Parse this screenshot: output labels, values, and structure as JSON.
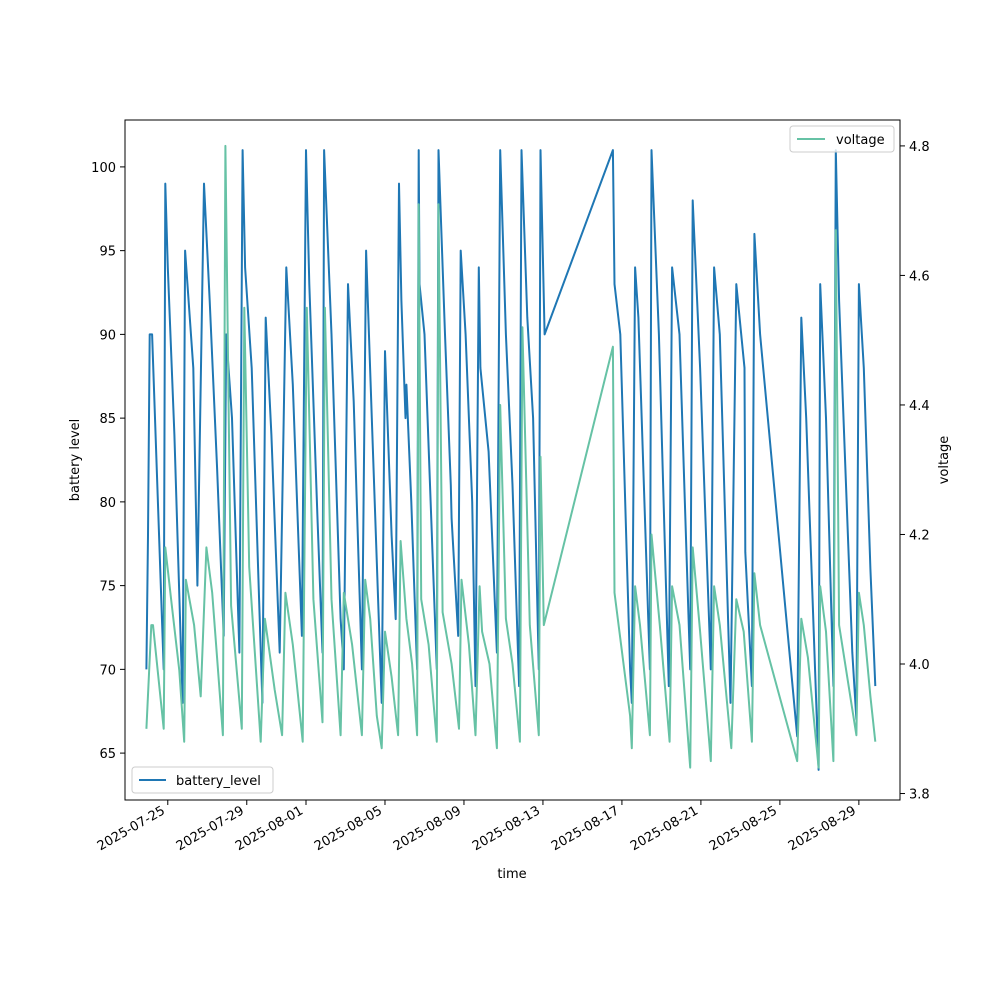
{
  "chart_data": {
    "type": "line",
    "title": "",
    "xlabel": "time",
    "ylabel_left": "battery level",
    "ylabel_right": "voltage",
    "x_ticks": [
      "2025-07-25",
      "2025-07-29",
      "2025-08-01",
      "2025-08-05",
      "2025-08-09",
      "2025-08-13",
      "2025-08-17",
      "2025-08-21",
      "2025-08-25",
      "2025-08-29"
    ],
    "xlim": [
      "2025-07-22T20:00",
      "2025-08-31T02:00"
    ],
    "yticks_left": [
      65,
      70,
      75,
      80,
      85,
      90,
      95,
      100
    ],
    "ylim_left": [
      62.2,
      102.8
    ],
    "yticks_right": [
      3.8,
      4.0,
      4.2,
      4.4,
      4.6,
      4.8
    ],
    "ylim_right": [
      3.79,
      4.84
    ],
    "grid": false,
    "legends": [
      {
        "label": "battery_level",
        "placement": "lower-left"
      },
      {
        "label": "voltage",
        "placement": "upper-right"
      }
    ],
    "series": [
      {
        "name": "battery_level",
        "axis": "left",
        "color": "#1f77b4",
        "points": [
          [
            "2025-07-23T22:00",
            70
          ],
          [
            "2025-07-24T00:00",
            78
          ],
          [
            "2025-07-24T02:00",
            90
          ],
          [
            "2025-07-24T05:00",
            90
          ],
          [
            "2025-07-24T19:00",
            70
          ],
          [
            "2025-07-24T21:00",
            99
          ],
          [
            "2025-07-25T00:00",
            94
          ],
          [
            "2025-07-25T08:00",
            84
          ],
          [
            "2025-07-25T18:00",
            68
          ],
          [
            "2025-07-25T21:00",
            95
          ],
          [
            "2025-07-26T07:00",
            88
          ],
          [
            "2025-07-26T12:00",
            75
          ],
          [
            "2025-07-26T20:00",
            99
          ],
          [
            "2025-07-27T03:00",
            92
          ],
          [
            "2025-07-27T12:00",
            82
          ],
          [
            "2025-07-27T20:00",
            72
          ],
          [
            "2025-07-27T23:00",
            90
          ],
          [
            "2025-07-28T06:00",
            85
          ],
          [
            "2025-07-28T15:00",
            71
          ],
          [
            "2025-07-28T19:00",
            101
          ],
          [
            "2025-07-28T22:00",
            94
          ],
          [
            "2025-07-29T06:00",
            88
          ],
          [
            "2025-07-29T19:00",
            68
          ],
          [
            "2025-07-29T23:00",
            91
          ],
          [
            "2025-07-30T06:00",
            84
          ],
          [
            "2025-07-30T16:00",
            71
          ],
          [
            "2025-07-31T00:00",
            94
          ],
          [
            "2025-07-31T08:00",
            87
          ],
          [
            "2025-07-31T19:00",
            72
          ],
          [
            "2025-08-01T00:00",
            101
          ],
          [
            "2025-08-01T04:00",
            93
          ],
          [
            "2025-08-01T14:00",
            79
          ],
          [
            "2025-08-01T20:00",
            71
          ],
          [
            "2025-08-01T22:00",
            101
          ],
          [
            "2025-08-02T07:00",
            90
          ],
          [
            "2025-08-02T18:00",
            73
          ],
          [
            "2025-08-02T22:00",
            70
          ],
          [
            "2025-08-03T03:00",
            93
          ],
          [
            "2025-08-03T10:00",
            86
          ],
          [
            "2025-08-03T20:00",
            70
          ],
          [
            "2025-08-04T01:00",
            95
          ],
          [
            "2025-08-04T08:00",
            85
          ],
          [
            "2025-08-04T20:00",
            68
          ],
          [
            "2025-08-05T00:00",
            89
          ],
          [
            "2025-08-05T08:00",
            78
          ],
          [
            "2025-08-05T13:00",
            73
          ],
          [
            "2025-08-05T17:00",
            99
          ],
          [
            "2025-08-05T20:00",
            92
          ],
          [
            "2025-08-06T01:00",
            85
          ],
          [
            "2025-08-06T02:00",
            87
          ],
          [
            "2025-08-06T08:00",
            80
          ],
          [
            "2025-08-06T15:00",
            70
          ],
          [
            "2025-08-06T17:00",
            101
          ],
          [
            "2025-08-06T18:00",
            93
          ],
          [
            "2025-08-07T00:00",
            90
          ],
          [
            "2025-08-07T06:00",
            82
          ],
          [
            "2025-08-07T15:00",
            70
          ],
          [
            "2025-08-07T17:00",
            101
          ],
          [
            "2025-08-08T01:00",
            90
          ],
          [
            "2025-08-08T08:00",
            81
          ],
          [
            "2025-08-08T09:00",
            79
          ],
          [
            "2025-08-08T17:00",
            72
          ],
          [
            "2025-08-08T20:00",
            95
          ],
          [
            "2025-08-09T02:00",
            90
          ],
          [
            "2025-08-09T10:00",
            80
          ],
          [
            "2025-08-09T14:00",
            69
          ],
          [
            "2025-08-09T18:00",
            94
          ],
          [
            "2025-08-09T20:00",
            88
          ],
          [
            "2025-08-10T06:00",
            83
          ],
          [
            "2025-08-10T16:00",
            71
          ],
          [
            "2025-08-10T20:00",
            101
          ],
          [
            "2025-08-11T03:00",
            90
          ],
          [
            "2025-08-11T11:00",
            81
          ],
          [
            "2025-08-11T19:00",
            69
          ],
          [
            "2025-08-11T22:00",
            101
          ],
          [
            "2025-08-12T05:00",
            91
          ],
          [
            "2025-08-12T12:00",
            85
          ],
          [
            "2025-08-12T19:00",
            70
          ],
          [
            "2025-08-12T21:00",
            101
          ],
          [
            "2025-08-13T02:00",
            90
          ],
          [
            "2025-08-16T13:00",
            101
          ],
          [
            "2025-08-16T15:00",
            93
          ],
          [
            "2025-08-16T22:00",
            90
          ],
          [
            "2025-08-17T10:00",
            70
          ],
          [
            "2025-08-17T12:00",
            68
          ],
          [
            "2025-08-17T16:00",
            94
          ],
          [
            "2025-08-17T20:00",
            91
          ],
          [
            "2025-08-18T10:00",
            70
          ],
          [
            "2025-08-18T12:00",
            101
          ],
          [
            "2025-08-18T21:00",
            90
          ],
          [
            "2025-08-19T09:00",
            69
          ],
          [
            "2025-08-19T13:00",
            94
          ],
          [
            "2025-08-19T22:00",
            90
          ],
          [
            "2025-08-20T11:00",
            70
          ],
          [
            "2025-08-20T14:00",
            98
          ],
          [
            "2025-08-20T23:00",
            88
          ],
          [
            "2025-08-21T12:00",
            70
          ],
          [
            "2025-08-21T16:00",
            94
          ],
          [
            "2025-08-21T23:00",
            90
          ],
          [
            "2025-08-22T12:00",
            68
          ],
          [
            "2025-08-22T19:00",
            93
          ],
          [
            "2025-08-23T05:00",
            88
          ],
          [
            "2025-08-23T06:00",
            77
          ],
          [
            "2025-08-23T14:00",
            69
          ],
          [
            "2025-08-23T17:00",
            96
          ],
          [
            "2025-08-24T00:00",
            90
          ],
          [
            "2025-08-25T21:00",
            66
          ],
          [
            "2025-08-26T02:00",
            91
          ],
          [
            "2025-08-26T08:00",
            85
          ],
          [
            "2025-08-26T23:00",
            64
          ],
          [
            "2025-08-27T01:00",
            93
          ],
          [
            "2025-08-27T08:00",
            85
          ],
          [
            "2025-08-27T17:00",
            69
          ],
          [
            "2025-08-27T20:00",
            101
          ],
          [
            "2025-08-28T00:00",
            92
          ],
          [
            "2025-08-28T16:00",
            71
          ],
          [
            "2025-08-28T21:00",
            67
          ],
          [
            "2025-08-29T00:00",
            93
          ],
          [
            "2025-08-29T06:00",
            88
          ],
          [
            "2025-08-29T14:00",
            76
          ],
          [
            "2025-08-29T20:00",
            69
          ]
        ]
      },
      {
        "name": "voltage",
        "axis": "right",
        "color": "#66c2a5",
        "points": [
          [
            "2025-07-23T22:00",
            3.9
          ],
          [
            "2025-07-24T04:00",
            4.06
          ],
          [
            "2025-07-24T06:00",
            4.06
          ],
          [
            "2025-07-24T19:00",
            3.9
          ],
          [
            "2025-07-24T21:00",
            4.18
          ],
          [
            "2025-07-25T04:00",
            4.1
          ],
          [
            "2025-07-25T14:00",
            3.99
          ],
          [
            "2025-07-25T20:00",
            3.88
          ],
          [
            "2025-07-25T22:00",
            4.13
          ],
          [
            "2025-07-26T08:00",
            4.06
          ],
          [
            "2025-07-26T16:00",
            3.95
          ],
          [
            "2025-07-26T23:00",
            4.18
          ],
          [
            "2025-07-27T06:00",
            4.11
          ],
          [
            "2025-07-27T19:00",
            3.89
          ],
          [
            "2025-07-27T22:00",
            4.8
          ],
          [
            "2025-07-28T05:00",
            4.09
          ],
          [
            "2025-07-28T18:00",
            3.9
          ],
          [
            "2025-07-28T21:00",
            4.55
          ],
          [
            "2025-07-29T03:00",
            4.15
          ],
          [
            "2025-07-29T17:00",
            3.88
          ],
          [
            "2025-07-29T22:00",
            4.07
          ],
          [
            "2025-07-30T10:00",
            3.96
          ],
          [
            "2025-07-30T19:00",
            3.89
          ],
          [
            "2025-07-30T23:00",
            4.11
          ],
          [
            "2025-07-31T08:00",
            4.03
          ],
          [
            "2025-07-31T20:00",
            3.88
          ],
          [
            "2025-08-01T01:00",
            4.55
          ],
          [
            "2025-08-01T09:00",
            4.1
          ],
          [
            "2025-08-01T20:00",
            3.91
          ],
          [
            "2025-08-01T23:00",
            4.55
          ],
          [
            "2025-08-02T07:00",
            4.1
          ],
          [
            "2025-08-02T18:00",
            3.89
          ],
          [
            "2025-08-02T22:00",
            4.11
          ],
          [
            "2025-08-03T08:00",
            4.03
          ],
          [
            "2025-08-03T20:00",
            3.89
          ],
          [
            "2025-08-04T00:00",
            4.13
          ],
          [
            "2025-08-04T06:00",
            4.07
          ],
          [
            "2025-08-04T14:00",
            3.92
          ],
          [
            "2025-08-04T20:00",
            3.87
          ],
          [
            "2025-08-05T00:00",
            4.05
          ],
          [
            "2025-08-05T08:00",
            3.98
          ],
          [
            "2025-08-05T16:00",
            3.89
          ],
          [
            "2025-08-05T19:00",
            4.19
          ],
          [
            "2025-08-06T02:00",
            4.07
          ],
          [
            "2025-08-06T09:00",
            4.0
          ],
          [
            "2025-08-06T15:00",
            3.89
          ],
          [
            "2025-08-06T17:00",
            4.71
          ],
          [
            "2025-08-06T20:00",
            4.1
          ],
          [
            "2025-08-07T05:00",
            4.03
          ],
          [
            "2025-08-07T15:00",
            3.88
          ],
          [
            "2025-08-07T17:00",
            4.71
          ],
          [
            "2025-08-07T22:00",
            4.08
          ],
          [
            "2025-08-08T09:00",
            4.0
          ],
          [
            "2025-08-08T18:00",
            3.9
          ],
          [
            "2025-08-08T21:00",
            4.13
          ],
          [
            "2025-08-09T06:00",
            4.03
          ],
          [
            "2025-08-09T14:00",
            3.89
          ],
          [
            "2025-08-09T19:00",
            4.12
          ],
          [
            "2025-08-09T22:00",
            4.05
          ],
          [
            "2025-08-10T07:00",
            4.0
          ],
          [
            "2025-08-10T16:00",
            3.87
          ],
          [
            "2025-08-10T20:00",
            4.4
          ],
          [
            "2025-08-11T03:00",
            4.07
          ],
          [
            "2025-08-11T11:00",
            4.0
          ],
          [
            "2025-08-11T20:00",
            3.88
          ],
          [
            "2025-08-11T23:00",
            4.52
          ],
          [
            "2025-08-12T08:00",
            4.06
          ],
          [
            "2025-08-12T19:00",
            3.89
          ],
          [
            "2025-08-12T21:00",
            4.32
          ],
          [
            "2025-08-13T01:00",
            4.06
          ],
          [
            "2025-08-16T13:00",
            4.49
          ],
          [
            "2025-08-16T15:00",
            4.11
          ],
          [
            "2025-08-17T10:00",
            3.92
          ],
          [
            "2025-08-17T12:00",
            3.87
          ],
          [
            "2025-08-17T16:00",
            4.12
          ],
          [
            "2025-08-17T22:00",
            4.06
          ],
          [
            "2025-08-18T10:00",
            3.89
          ],
          [
            "2025-08-18T12:00",
            4.2
          ],
          [
            "2025-08-18T22:00",
            4.06
          ],
          [
            "2025-08-19T10:00",
            3.88
          ],
          [
            "2025-08-19T13:00",
            4.12
          ],
          [
            "2025-08-19T22:00",
            4.06
          ],
          [
            "2025-08-20T11:00",
            3.84
          ],
          [
            "2025-08-20T14:00",
            4.18
          ],
          [
            "2025-08-20T23:00",
            4.05
          ],
          [
            "2025-08-21T12:00",
            3.85
          ],
          [
            "2025-08-21T16:00",
            4.12
          ],
          [
            "2025-08-21T23:00",
            4.06
          ],
          [
            "2025-08-22T13:00",
            3.87
          ],
          [
            "2025-08-22T19:00",
            4.1
          ],
          [
            "2025-08-23T04:00",
            4.05
          ],
          [
            "2025-08-23T14:00",
            3.88
          ],
          [
            "2025-08-23T17:00",
            4.14
          ],
          [
            "2025-08-24T00:00",
            4.06
          ],
          [
            "2025-08-25T21:00",
            3.85
          ],
          [
            "2025-08-26T02:00",
            4.07
          ],
          [
            "2025-08-26T10:00",
            4.01
          ],
          [
            "2025-08-26T23:00",
            3.84
          ],
          [
            "2025-08-27T01:00",
            4.12
          ],
          [
            "2025-08-27T08:00",
            4.05
          ],
          [
            "2025-08-27T17:00",
            3.85
          ],
          [
            "2025-08-27T20:00",
            4.67
          ],
          [
            "2025-08-28T00:00",
            4.06
          ],
          [
            "2025-08-28T16:00",
            3.93
          ],
          [
            "2025-08-28T21:00",
            3.89
          ],
          [
            "2025-08-29T00:00",
            4.11
          ],
          [
            "2025-08-29T06:00",
            4.06
          ],
          [
            "2025-08-29T14:00",
            3.95
          ],
          [
            "2025-08-29T20:00",
            3.88
          ]
        ]
      }
    ]
  }
}
